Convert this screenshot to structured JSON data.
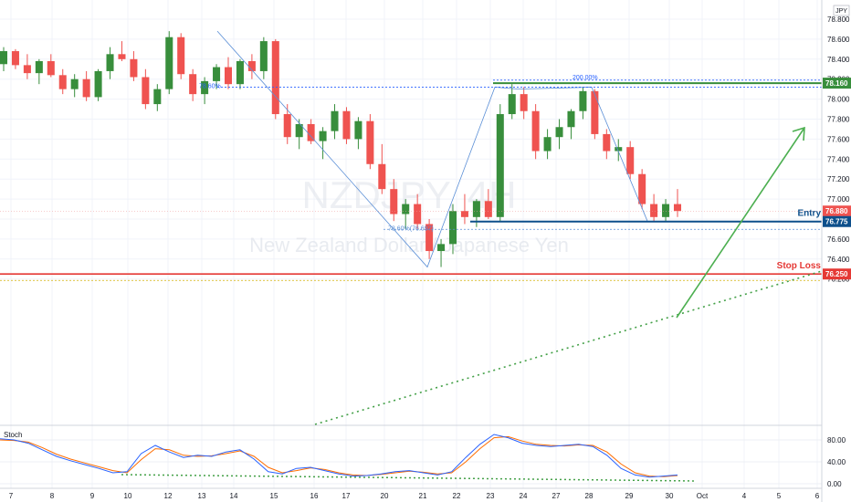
{
  "chart_data": {
    "type": "candlestick",
    "symbol_box": "JPY",
    "watermark_symbol": "NZDJPY, 4H",
    "watermark_name": "New Zealand Dollar / Japanese Yen",
    "y_ticks": [
      "78.800",
      "78.600",
      "78.400",
      "78.200",
      "78.000",
      "77.800",
      "77.600",
      "77.400",
      "77.200",
      "77.000",
      "76.800",
      "76.600",
      "76.400",
      "76.200"
    ],
    "y_tick_values": [
      78.8,
      78.6,
      78.4,
      78.2,
      78.0,
      77.8,
      77.6,
      77.4,
      77.2,
      77.0,
      76.8,
      76.6,
      76.4,
      76.2
    ],
    "ylim": [
      76.1,
      79.0
    ],
    "x_ticks": [
      "7",
      "8",
      "9",
      "10",
      "12",
      "13",
      "14",
      "15",
      "16",
      "17",
      "20",
      "21",
      "22",
      "23",
      "24",
      "27",
      "28",
      "29",
      "30",
      "Oct",
      "4",
      "5",
      "6"
    ],
    "price_tags": [
      {
        "label": "78.160",
        "value": 78.16,
        "color": "#388e3c"
      },
      {
        "label": "76.880",
        "value": 76.88,
        "color": "#ef5350"
      },
      {
        "label": "76.775",
        "value": 76.775,
        "color": "#0d4f8b"
      },
      {
        "label": "76.250",
        "value": 76.25,
        "color": "#e53935"
      }
    ],
    "levels": {
      "target": 78.16,
      "entry": 76.775,
      "stop_loss": 76.25
    },
    "annotations": {
      "fib_top": "200.00%",
      "fib_mid": "78.60%",
      "fib_low": "78.60%(76.697)",
      "entry": "Entry",
      "stop_loss": "Stop Loss"
    },
    "candles": [
      [
        78.35,
        78.52,
        78.28,
        78.48
      ],
      [
        78.48,
        78.5,
        78.3,
        78.34
      ],
      [
        78.34,
        78.45,
        78.2,
        78.26
      ],
      [
        78.26,
        78.4,
        78.15,
        78.38
      ],
      [
        78.38,
        78.45,
        78.22,
        78.24
      ],
      [
        78.24,
        78.3,
        78.05,
        78.1
      ],
      [
        78.1,
        78.25,
        78.02,
        78.2
      ],
      [
        78.2,
        78.28,
        77.98,
        78.02
      ],
      [
        78.02,
        78.3,
        77.98,
        78.28
      ],
      [
        78.28,
        78.52,
        78.2,
        78.45
      ],
      [
        78.45,
        78.58,
        78.38,
        78.4
      ],
      [
        78.4,
        78.48,
        78.18,
        78.22
      ],
      [
        78.22,
        78.3,
        77.9,
        77.95
      ],
      [
        77.95,
        78.15,
        77.88,
        78.1
      ],
      [
        78.1,
        78.68,
        78.05,
        78.62
      ],
      [
        78.62,
        78.66,
        78.2,
        78.25
      ],
      [
        78.25,
        78.3,
        77.98,
        78.05
      ],
      [
        78.05,
        78.22,
        77.95,
        78.18
      ],
      [
        78.18,
        78.35,
        78.1,
        78.32
      ],
      [
        78.32,
        78.42,
        78.1,
        78.15
      ],
      [
        78.15,
        78.4,
        78.1,
        78.38
      ],
      [
        78.38,
        78.45,
        78.2,
        78.28
      ],
      [
        78.28,
        78.62,
        78.2,
        78.58
      ],
      [
        78.58,
        78.6,
        77.8,
        77.85
      ],
      [
        77.85,
        77.95,
        77.55,
        77.62
      ],
      [
        77.62,
        77.8,
        77.5,
        77.75
      ],
      [
        77.75,
        77.8,
        77.55,
        77.58
      ],
      [
        77.58,
        77.72,
        77.4,
        77.68
      ],
      [
        77.68,
        77.95,
        77.6,
        77.88
      ],
      [
        77.88,
        77.92,
        77.55,
        77.6
      ],
      [
        77.6,
        77.82,
        77.5,
        77.78
      ],
      [
        77.78,
        77.85,
        77.3,
        77.35
      ],
      [
        77.35,
        77.55,
        77.05,
        77.1
      ],
      [
        77.1,
        77.2,
        76.78,
        76.85
      ],
      [
        76.85,
        77.0,
        76.7,
        76.95
      ],
      [
        76.95,
        77.05,
        76.7,
        76.75
      ],
      [
        76.75,
        76.8,
        76.4,
        76.48
      ],
      [
        76.48,
        76.6,
        76.32,
        76.55
      ],
      [
        76.55,
        76.95,
        76.45,
        76.88
      ],
      [
        76.88,
        77.05,
        76.75,
        76.82
      ],
      [
        76.82,
        77.0,
        76.72,
        76.98
      ],
      [
        76.98,
        77.1,
        76.8,
        76.82
      ],
      [
        76.82,
        77.95,
        76.78,
        77.85
      ],
      [
        77.85,
        78.15,
        77.8,
        78.05
      ],
      [
        78.05,
        78.12,
        77.8,
        77.88
      ],
      [
        77.88,
        77.95,
        77.4,
        77.48
      ],
      [
        77.48,
        77.7,
        77.4,
        77.62
      ],
      [
        77.62,
        77.8,
        77.5,
        77.72
      ],
      [
        77.72,
        77.9,
        77.6,
        77.88
      ],
      [
        77.88,
        78.12,
        77.8,
        78.08
      ],
      [
        78.08,
        78.1,
        77.6,
        77.65
      ],
      [
        77.65,
        77.7,
        77.4,
        77.48
      ],
      [
        77.48,
        77.6,
        77.38,
        77.52
      ],
      [
        77.52,
        77.58,
        77.2,
        77.25
      ],
      [
        77.25,
        77.3,
        76.9,
        76.95
      ],
      [
        76.95,
        77.05,
        76.78,
        76.82
      ],
      [
        76.82,
        77.0,
        76.78,
        76.95
      ],
      [
        76.95,
        77.1,
        76.82,
        76.88
      ]
    ],
    "stoch_ticks": [
      "80.00",
      "40.00",
      "0.00"
    ],
    "stoch_tick_values": [
      80,
      40,
      0
    ],
    "stoch_label": "Stoch",
    "stoch_k": [
      82,
      80,
      74,
      62,
      50,
      42,
      35,
      28,
      20,
      22,
      55,
      70,
      58,
      48,
      52,
      50,
      58,
      62,
      45,
      22,
      18,
      28,
      30,
      24,
      18,
      14,
      15,
      18,
      22,
      24,
      20,
      16,
      22,
      48,
      72,
      90,
      84,
      74,
      70,
      68,
      70,
      72,
      68,
      52,
      28,
      16,
      12,
      14,
      16
    ],
    "stoch_d": [
      80,
      79,
      76,
      66,
      54,
      45,
      38,
      31,
      24,
      20,
      44,
      64,
      62,
      52,
      50,
      51,
      55,
      60,
      50,
      30,
      20,
      24,
      29,
      26,
      20,
      16,
      15,
      17,
      20,
      23,
      21,
      18,
      20,
      40,
      64,
      84,
      86,
      78,
      72,
      70,
      69,
      71,
      70,
      58,
      36,
      20,
      14,
      13,
      15
    ]
  }
}
